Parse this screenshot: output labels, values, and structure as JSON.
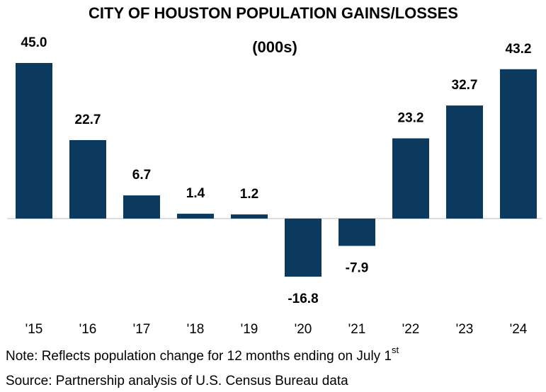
{
  "chart_data": {
    "type": "bar",
    "title": "CITY OF HOUSTON POPULATION GAINS/LOSSES",
    "subtitle": "(000s)",
    "categories": [
      "'15",
      "'16",
      "'17",
      "'18",
      "'19",
      "'20",
      "'21",
      "'22",
      "'23",
      "'24"
    ],
    "values": [
      45.0,
      22.7,
      6.7,
      1.4,
      1.2,
      -16.8,
      -7.9,
      23.2,
      32.7,
      43.2
    ],
    "value_labels": [
      "45.0",
      "22.7",
      "6.7",
      "1.4",
      "1.2",
      "-16.8",
      "-7.9",
      "23.2",
      "32.7",
      "43.2"
    ],
    "color": "#0b3a5e",
    "note": "Note: Reflects population change for 12 months ending on July 1",
    "note_superscript": "st",
    "source": "Source: Partnership analysis of U.S. Census Bureau data"
  }
}
